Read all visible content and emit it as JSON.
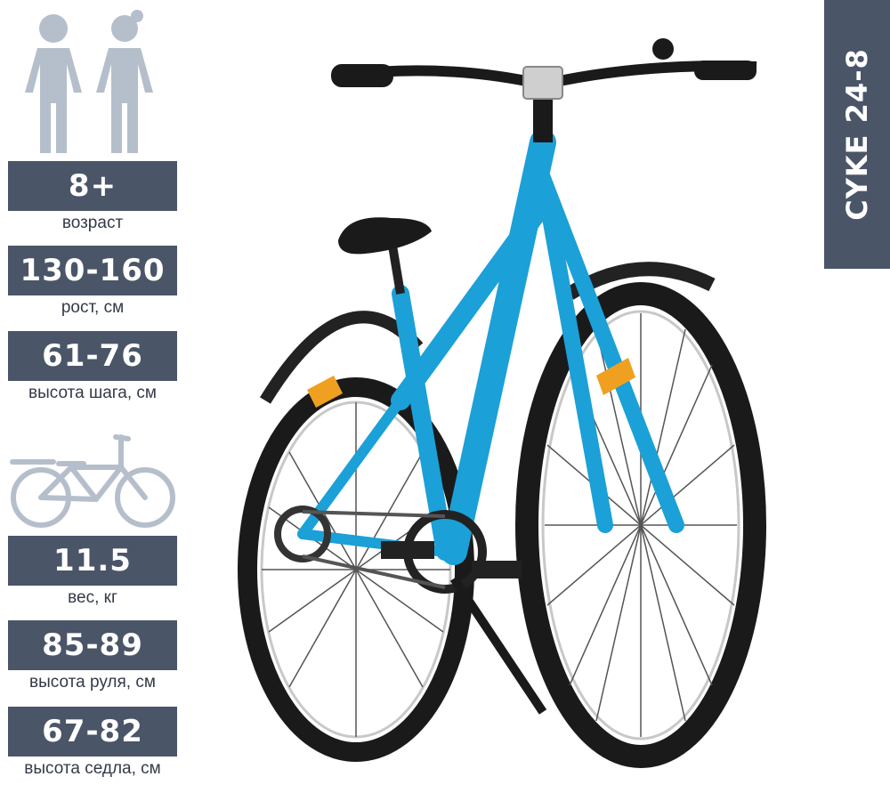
{
  "specs": [
    {
      "value": "8+",
      "label": "возраст"
    },
    {
      "value": "130-160",
      "label": "рост, см"
    },
    {
      "value": "61-76",
      "label": "высота шага, см"
    },
    {
      "value": "11.5",
      "label": "вес, кг"
    },
    {
      "value": "85-89",
      "label": "высота руля, см"
    },
    {
      "value": "67-82",
      "label": "высота седла, см"
    }
  ],
  "model": {
    "name": "CYKE 24-8"
  },
  "icons": {
    "kids": "children-silhouette-icon",
    "bike": "bicycle-icon"
  },
  "colors": {
    "panel": "#4a5568",
    "icon": "#b5bfcb",
    "frame": "#1ba0d8"
  }
}
